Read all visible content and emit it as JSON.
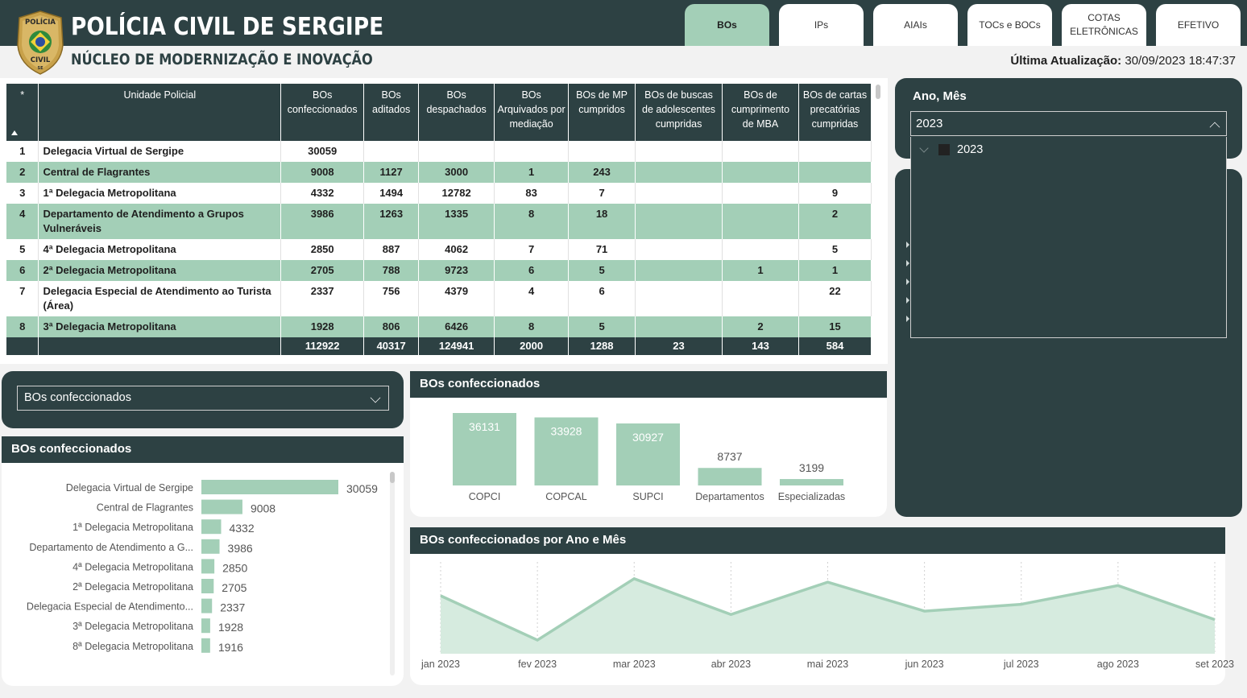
{
  "header": {
    "title": "POLÍCIA CIVIL DE SERGIPE",
    "subtitle": "NÚCLEO DE MODERNIZAÇÃO E INOVAÇÃO",
    "badge_top": "POLÍCIA",
    "badge_bottom": "CIVIL",
    "badge_state": "SE",
    "last_update_label": "Última Atualização:",
    "last_update_value": "30/09/2023 18:47:37"
  },
  "tabs": [
    {
      "label": "BOs",
      "active": true
    },
    {
      "label": "IPs",
      "active": false
    },
    {
      "label": "AIAIs",
      "active": false
    },
    {
      "label": "TOCs e BOCs",
      "active": false
    },
    {
      "label": "COTAS ELETRÔNICAS",
      "active": false
    },
    {
      "label": "EFETIVO",
      "active": false
    }
  ],
  "table": {
    "headers": [
      "*",
      "Unidade Policial",
      "BOs confeccionados",
      "BOs aditados",
      "BOs despachados",
      "BOs Arquivados por mediação",
      "BOs de MP cumpridos",
      "BOs de buscas de adolescentes cumpridas",
      "BOs de cumprimento de MBA",
      "BOs de cartas precatórias cumpridas"
    ],
    "rows": [
      [
        "1",
        "Delegacia Virtual de Sergipe",
        "30059",
        "",
        "",
        "",
        "",
        "",
        "",
        ""
      ],
      [
        "2",
        "Central de Flagrantes",
        "9008",
        "1127",
        "3000",
        "1",
        "243",
        "",
        "",
        ""
      ],
      [
        "3",
        "1ª Delegacia Metropolitana",
        "4332",
        "1494",
        "12782",
        "83",
        "7",
        "",
        "",
        "9"
      ],
      [
        "4",
        "Departamento de Atendimento a Grupos Vulneráveis",
        "3986",
        "1263",
        "1335",
        "8",
        "18",
        "",
        "",
        "2"
      ],
      [
        "5",
        "4ª Delegacia Metropolitana",
        "2850",
        "887",
        "4062",
        "7",
        "71",
        "",
        "",
        "5"
      ],
      [
        "6",
        "2ª Delegacia Metropolitana",
        "2705",
        "788",
        "9723",
        "6",
        "5",
        "",
        "1",
        "1"
      ],
      [
        "7",
        "Delegacia Especial de Atendimento ao Turista (Área)",
        "2337",
        "756",
        "4379",
        "4",
        "6",
        "",
        "",
        "22"
      ],
      [
        "8",
        "3ª Delegacia Metropolitana",
        "1928",
        "806",
        "6426",
        "8",
        "5",
        "",
        "2",
        "15"
      ]
    ],
    "totals": [
      "",
      "",
      "112922",
      "40317",
      "124941",
      "2000",
      "1288",
      "23",
      "143",
      "584"
    ]
  },
  "measure_selector": {
    "value": "BOs confeccionados"
  },
  "slicer": {
    "title": "Ano, Mês",
    "value": "2023",
    "options": [
      "2023"
    ]
  },
  "chart_data": [
    {
      "type": "bar",
      "orientation": "horizontal",
      "title": "BOs confeccionados",
      "categories": [
        "Delegacia Virtual de Sergipe",
        "Central de Flagrantes",
        "1ª Delegacia Metropolitana",
        "Departamento de Atendimento a G...",
        "4ª Delegacia Metropolitana",
        "2ª Delegacia Metropolitana",
        "Delegacia Especial de Atendimento...",
        "3ª Delegacia Metropolitana",
        "8ª Delegacia Metropolitana"
      ],
      "values": [
        30059,
        9008,
        4332,
        3986,
        2850,
        2705,
        2337,
        1928,
        1916
      ],
      "color": "#a3cfb7"
    },
    {
      "type": "bar",
      "title": "BOs confeccionados",
      "categories": [
        "COPCI",
        "COPCAL",
        "SUPCI",
        "Departamentos",
        "Especializadas"
      ],
      "values": [
        36131,
        33928,
        30927,
        8737,
        3199
      ],
      "color": "#a3cfb7"
    },
    {
      "type": "area",
      "title": "BOs confeccionados por Ano e Mês",
      "categories": [
        "jan 2023",
        "fev 2023",
        "mar 2023",
        "abr 2023",
        "mai 2023",
        "jun 2023",
        "jul 2023",
        "ago 2023",
        "set 2023"
      ],
      "values": [
        12900,
        10300,
        13900,
        11800,
        13700,
        12000,
        12400,
        13500,
        11500
      ],
      "ylim": [
        9500,
        14600
      ],
      "color": "#a3cfb7"
    }
  ]
}
